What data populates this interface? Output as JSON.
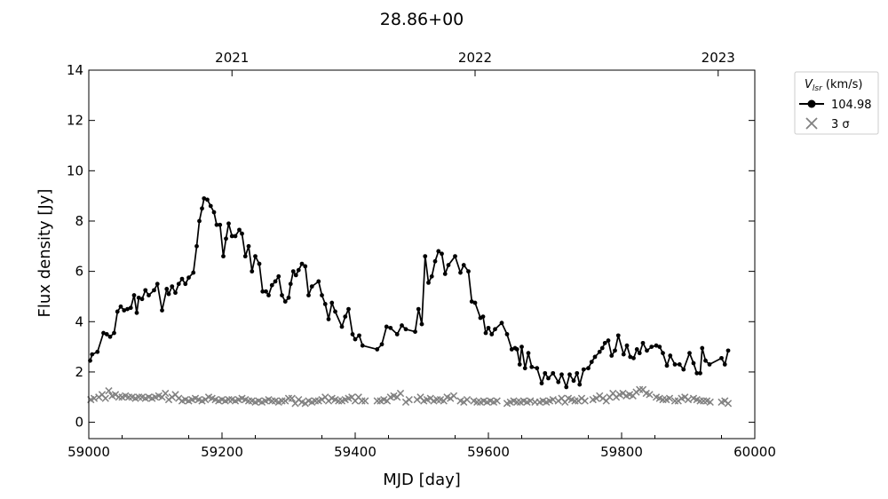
{
  "chart_data": {
    "type": "line",
    "title": "28.86+00",
    "xlabel": "MJD [day]",
    "ylabel": "Flux density [Jy]",
    "xlim": [
      59000,
      60000
    ],
    "ylim": [
      -0.65,
      14
    ],
    "x_ticks": [
      59000,
      59200,
      59400,
      59600,
      59800,
      60000
    ],
    "x_tick_labels": [
      "59000",
      "59200",
      "59400",
      "59600",
      "59800",
      "60000"
    ],
    "y_ticks": [
      0,
      2,
      4,
      6,
      8,
      10,
      12,
      14
    ],
    "y_tick_labels": [
      "0",
      "2",
      "4",
      "6",
      "8",
      "10",
      "12",
      "14"
    ],
    "top_axis": {
      "ticks": [
        {
          "mjd": 59215,
          "label": "2021"
        },
        {
          "mjd": 59580,
          "label": "2022"
        },
        {
          "mjd": 59945,
          "label": "2023"
        }
      ]
    },
    "grid": false,
    "legend": {
      "placement": "outside-top-right",
      "title_prefix": "V",
      "title_sub": "lsr",
      "title_suffix": " (km/s)",
      "entries": [
        "104.98",
        "3 σ"
      ]
    },
    "colors": {
      "flux": "#000000",
      "sigma": "#808080"
    },
    "series": [
      {
        "name": "104.98",
        "style": "line-dot",
        "color": "#000000",
        "x": [
          59002,
          59005,
          59013,
          59022,
          59027,
          59032,
          59038,
          59043,
          59048,
          59053,
          59058,
          59063,
          59068,
          59072,
          59075,
          59080,
          59085,
          59090,
          59098,
          59103,
          59110,
          59117,
          59120,
          59125,
          59130,
          59135,
          59140,
          59145,
          59150,
          59157,
          59162,
          59166,
          59170,
          59173,
          59178,
          59183,
          59188,
          59192,
          59197,
          59202,
          59206,
          59210,
          59215,
          59220,
          59226,
          59230,
          59235,
          59240,
          59245,
          59250,
          59256,
          59261,
          59266,
          59270,
          59275,
          59280,
          59285,
          59290,
          59295,
          59300,
          59303,
          59307,
          59311,
          59315,
          59320,
          59325,
          59330,
          59335,
          59345,
          59350,
          59355,
          59360,
          59365,
          59370,
          59380,
          59385,
          59390,
          59396,
          59400,
          59406,
          59411,
          59433,
          59440,
          59447,
          59453,
          59463,
          59470,
          59476,
          59490,
          59495,
          59500,
          59505,
          59510,
          59515,
          59520,
          59525,
          59530,
          59535,
          59540,
          59550,
          59558,
          59563,
          59570,
          59575,
          59580,
          59588,
          59592,
          59596,
          59600,
          59605,
          59610,
          59620,
          59628,
          59635,
          59640,
          59643,
          59647,
          59650,
          59655,
          59660,
          59665,
          59673,
          59680,
          59685,
          59690,
          59697,
          59705,
          59710,
          59717,
          59722,
          59728,
          59733,
          59737,
          59743,
          59750,
          59755,
          59760,
          59767,
          59771,
          59775,
          59780,
          59785,
          59790,
          59795,
          59803,
          59808,
          59813,
          59818,
          59823,
          59827,
          59832,
          59838,
          59845,
          59852,
          59857,
          59862,
          59868,
          59873,
          59880,
          59887,
          59893,
          59902,
          59908,
          59913,
          59918,
          59921,
          59926,
          59932,
          59950,
          59955,
          59960
        ],
        "values": [
          2.45,
          2.7,
          2.8,
          3.55,
          3.5,
          3.4,
          3.55,
          4.4,
          4.6,
          4.45,
          4.5,
          4.55,
          5.05,
          4.35,
          4.95,
          4.9,
          5.25,
          5.05,
          5.25,
          5.5,
          4.45,
          5.3,
          5.1,
          5.4,
          5.15,
          5.5,
          5.7,
          5.5,
          5.75,
          5.95,
          7.0,
          8.0,
          8.5,
          8.9,
          8.85,
          8.6,
          8.35,
          7.85,
          7.85,
          6.6,
          7.3,
          7.9,
          7.4,
          7.4,
          7.65,
          7.5,
          6.6,
          7.0,
          6.0,
          6.6,
          6.3,
          5.2,
          5.2,
          5.05,
          5.45,
          5.6,
          5.8,
          5.05,
          4.8,
          4.95,
          5.5,
          6.0,
          5.85,
          6.05,
          6.3,
          6.2,
          5.05,
          5.4,
          5.6,
          5.05,
          4.7,
          4.1,
          4.75,
          4.4,
          3.8,
          4.2,
          4.5,
          3.5,
          3.3,
          3.45,
          3.05,
          2.9,
          3.1,
          3.8,
          3.75,
          3.5,
          3.85,
          3.7,
          3.6,
          4.5,
          3.9,
          6.6,
          5.55,
          5.8,
          6.4,
          6.8,
          6.7,
          5.9,
          6.25,
          6.6,
          5.95,
          6.25,
          6.0,
          4.8,
          4.75,
          4.15,
          4.2,
          3.55,
          3.75,
          3.5,
          3.7,
          3.95,
          3.5,
          2.9,
          2.95,
          2.9,
          2.3,
          3.0,
          2.15,
          2.75,
          2.2,
          2.15,
          1.55,
          1.95,
          1.75,
          1.95,
          1.6,
          1.9,
          1.4,
          1.9,
          1.65,
          1.95,
          1.5,
          2.1,
          2.15,
          2.4,
          2.6,
          2.8,
          2.95,
          3.15,
          3.25,
          2.65,
          2.85,
          3.45,
          2.7,
          3.05,
          2.6,
          2.55,
          2.9,
          2.75,
          3.15,
          2.85,
          3.0,
          3.05,
          3.0,
          2.75,
          2.25,
          2.65,
          2.3,
          2.3,
          2.1,
          2.75,
          2.35,
          1.95,
          1.95,
          2.95,
          2.45,
          2.3,
          2.55,
          2.3,
          2.85
        ]
      },
      {
        "name": "3 σ",
        "style": "x-marker",
        "color": "#808080",
        "x": [
          59003,
          59008,
          59015,
          59020,
          59025,
          59030,
          59035,
          59040,
          59045,
          59050,
          59055,
          59060,
          59065,
          59070,
          59075,
          59080,
          59085,
          59090,
          59095,
          59100,
          59105,
          59110,
          59115,
          59120,
          59125,
          59130,
          59135,
          59140,
          59145,
          59150,
          59155,
          59160,
          59165,
          59170,
          59175,
          59180,
          59185,
          59190,
          59195,
          59200,
          59205,
          59210,
          59215,
          59220,
          59225,
          59230,
          59235,
          59240,
          59245,
          59250,
          59255,
          59260,
          59265,
          59270,
          59275,
          59280,
          59285,
          59290,
          59295,
          59300,
          59305,
          59310,
          59315,
          59320,
          59325,
          59330,
          59335,
          59340,
          59345,
          59350,
          59355,
          59360,
          59365,
          59370,
          59375,
          59380,
          59385,
          59390,
          59395,
          59400,
          59405,
          59410,
          59415,
          59433,
          59438,
          59443,
          59448,
          59453,
          59458,
          59463,
          59468,
          59476,
          59481,
          59493,
          59498,
          59503,
          59508,
          59513,
          59518,
          59523,
          59528,
          59533,
          59538,
          59543,
          59548,
          59558,
          59563,
          59568,
          59578,
          59583,
          59588,
          59593,
          59598,
          59603,
          59608,
          59613,
          59628,
          59633,
          59638,
          59643,
          59648,
          59653,
          59658,
          59663,
          59670,
          59677,
          59682,
          59687,
          59692,
          59697,
          59705,
          59710,
          59715,
          59720,
          59725,
          59730,
          59735,
          59740,
          59745,
          59757,
          59762,
          59767,
          59772,
          59777,
          59782,
          59787,
          59792,
          59797,
          59802,
          59807,
          59812,
          59817,
          59822,
          59827,
          59832,
          59837,
          59842,
          59852,
          59857,
          59862,
          59867,
          59872,
          59880,
          59885,
          59890,
          59895,
          59900,
          59908,
          59913,
          59918,
          59923,
          59928,
          59933,
          59950,
          59955,
          59960
        ],
        "values": [
          0.9,
          0.95,
          1.0,
          1.1,
          0.95,
          1.25,
          1.05,
          1.1,
          1.0,
          1.0,
          1.05,
          1.0,
          1.0,
          0.95,
          1.0,
          1.0,
          0.95,
          1.0,
          0.95,
          1.0,
          1.05,
          1.0,
          1.15,
          0.9,
          1.0,
          1.1,
          0.95,
          0.85,
          0.9,
          0.85,
          0.9,
          0.95,
          0.9,
          0.85,
          0.9,
          1.0,
          0.95,
          0.9,
          0.85,
          0.9,
          0.85,
          0.9,
          0.9,
          0.85,
          0.9,
          0.95,
          0.9,
          0.85,
          0.85,
          0.8,
          0.85,
          0.8,
          0.85,
          0.9,
          0.85,
          0.85,
          0.8,
          0.85,
          0.85,
          0.95,
          0.95,
          0.75,
          0.9,
          0.8,
          0.75,
          0.85,
          0.8,
          0.85,
          0.85,
          0.9,
          1.0,
          0.85,
          0.95,
          0.9,
          0.85,
          0.85,
          0.9,
          0.95,
          1.0,
          0.85,
          1.0,
          0.85,
          0.85,
          0.85,
          0.85,
          0.9,
          0.85,
          1.0,
          1.05,
          1.0,
          1.15,
          0.8,
          0.9,
          0.9,
          1.0,
          0.85,
          0.9,
          0.95,
          0.85,
          0.9,
          0.9,
          0.85,
          1.0,
          0.95,
          1.05,
          0.85,
          0.8,
          0.9,
          0.85,
          0.8,
          0.8,
          0.85,
          0.8,
          0.85,
          0.8,
          0.85,
          0.75,
          0.8,
          0.85,
          0.8,
          0.8,
          0.85,
          0.8,
          0.85,
          0.8,
          0.8,
          0.85,
          0.8,
          0.85,
          0.9,
          0.85,
          0.95,
          0.8,
          0.95,
          0.9,
          0.85,
          0.85,
          0.95,
          0.85,
          0.9,
          0.95,
          1.05,
          0.95,
          0.85,
          1.0,
          1.15,
          1.0,
          1.1,
          1.15,
          1.05,
          1.1,
          1.05,
          1.2,
          1.3,
          1.3,
          1.15,
          1.1,
          1.0,
          0.95,
          0.9,
          0.9,
          0.95,
          0.85,
          0.85,
          0.95,
          1.0,
          0.9,
          0.95,
          0.9,
          0.85,
          0.85,
          0.85,
          0.8,
          0.8,
          0.85,
          0.75
        ]
      }
    ]
  }
}
